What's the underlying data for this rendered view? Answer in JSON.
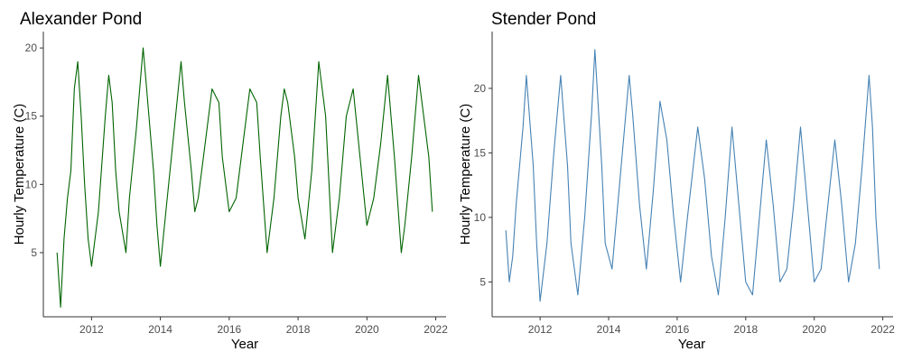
{
  "chart_data": [
    {
      "type": "line",
      "title": "Alexander Pond",
      "xlabel": "Year",
      "ylabel": "Hourly Temperature (C)",
      "xlim": [
        2010.6,
        2022.3
      ],
      "ylim": [
        0.3,
        21.2
      ],
      "xticks": [
        2012,
        2014,
        2016,
        2018,
        2020,
        2022
      ],
      "yticks": [
        5,
        10,
        15,
        20
      ],
      "color": "#006400",
      "grid": false,
      "series": [
        {
          "x": [
            2011.0,
            2011.1,
            2011.2,
            2011.3,
            2011.4,
            2011.5,
            2011.6,
            2011.7,
            2011.8,
            2011.9,
            2012.0,
            2012.2,
            2012.4,
            2012.5,
            2012.6,
            2012.7,
            2012.8,
            2013.0,
            2013.1,
            2013.3,
            2013.5,
            2013.6,
            2013.8,
            2013.9,
            2014.0,
            2014.2,
            2014.4,
            2014.6,
            2014.7,
            2014.9,
            2015.0,
            2015.1,
            2015.3,
            2015.5,
            2015.7,
            2015.8,
            2016.0,
            2016.2,
            2016.4,
            2016.6,
            2016.8,
            2016.9,
            2017.1,
            2017.3,
            2017.5,
            2017.6,
            2017.7,
            2017.9,
            2018.0,
            2018.2,
            2018.4,
            2018.6,
            2018.8,
            2019.0,
            2019.2,
            2019.4,
            2019.6,
            2019.8,
            2020.0,
            2020.2,
            2020.4,
            2020.6,
            2020.8,
            2021.0,
            2021.1,
            2021.3,
            2021.5,
            2021.6,
            2021.8,
            2021.9
          ],
          "y": [
            5,
            1,
            6,
            9,
            11,
            17,
            19,
            15,
            10,
            6,
            4,
            8,
            15,
            18,
            16,
            11,
            8,
            5,
            9,
            14,
            20,
            17,
            11,
            7,
            4,
            9,
            14,
            19,
            16,
            11,
            8,
            9,
            13,
            17,
            16,
            12,
            8,
            9,
            13,
            17,
            16,
            12,
            5,
            9,
            15,
            17,
            16,
            12,
            9,
            6,
            11,
            19,
            15,
            5,
            9,
            15,
            17,
            12,
            7,
            9,
            13,
            18,
            12,
            5,
            7,
            12,
            18,
            16,
            12,
            8
          ]
        }
      ]
    },
    {
      "type": "line",
      "title": "Stender Pond",
      "xlabel": "Year",
      "ylabel": "Hourly Temperature (C)",
      "xlim": [
        2010.6,
        2022.3
      ],
      "ylim": [
        2.3,
        24.4
      ],
      "xticks": [
        2012,
        2014,
        2016,
        2018,
        2020,
        2022
      ],
      "yticks": [
        5,
        10,
        15,
        20
      ],
      "color": "#4682B4",
      "grid": false,
      "series": [
        {
          "x": [
            2011.0,
            2011.1,
            2011.2,
            2011.3,
            2011.5,
            2011.6,
            2011.8,
            2011.9,
            2012.0,
            2012.2,
            2012.4,
            2012.6,
            2012.8,
            2012.9,
            2013.1,
            2013.3,
            2013.5,
            2013.6,
            2013.8,
            2013.9,
            2014.1,
            2014.3,
            2014.6,
            2014.7,
            2014.9,
            2015.1,
            2015.3,
            2015.5,
            2015.7,
            2015.9,
            2016.1,
            2016.3,
            2016.6,
            2016.8,
            2017.0,
            2017.2,
            2017.4,
            2017.6,
            2017.8,
            2018.0,
            2018.2,
            2018.4,
            2018.6,
            2018.8,
            2019.0,
            2019.2,
            2019.4,
            2019.6,
            2019.8,
            2020.0,
            2020.2,
            2020.4,
            2020.6,
            2020.8,
            2021.0,
            2021.2,
            2021.4,
            2021.6,
            2021.7,
            2021.8,
            2021.9
          ],
          "y": [
            9,
            5,
            7,
            11,
            17,
            21,
            14,
            8,
            3.5,
            8,
            15,
            21,
            14,
            8,
            4,
            10,
            18,
            23,
            14,
            8,
            6,
            12,
            21,
            18,
            11,
            6,
            12,
            19,
            16,
            10,
            5,
            10,
            17,
            13,
            7,
            4,
            10,
            17,
            11,
            5,
            4,
            10,
            16,
            11,
            5,
            6,
            11,
            17,
            11,
            5,
            6,
            11,
            16,
            11,
            5,
            8,
            14,
            21,
            17,
            10,
            6
          ]
        }
      ]
    }
  ]
}
